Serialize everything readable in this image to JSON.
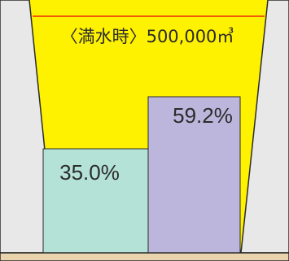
{
  "colors": {
    "water": "#fff200",
    "wall": "#e8e8e8",
    "wall_stroke": "#2b2b2b",
    "ground": "#ead4ad",
    "full_line": "#e60012",
    "bar_left": "#b5e2d6",
    "bar_right": "#bcb6dc",
    "text": "#2b2b2b"
  },
  "capacity_label": "〈満水時〉500,000㎥",
  "levels": [
    {
      "label": "35.0%",
      "value": 35.0
    },
    {
      "label": "59.2%",
      "value": 59.2
    }
  ]
}
